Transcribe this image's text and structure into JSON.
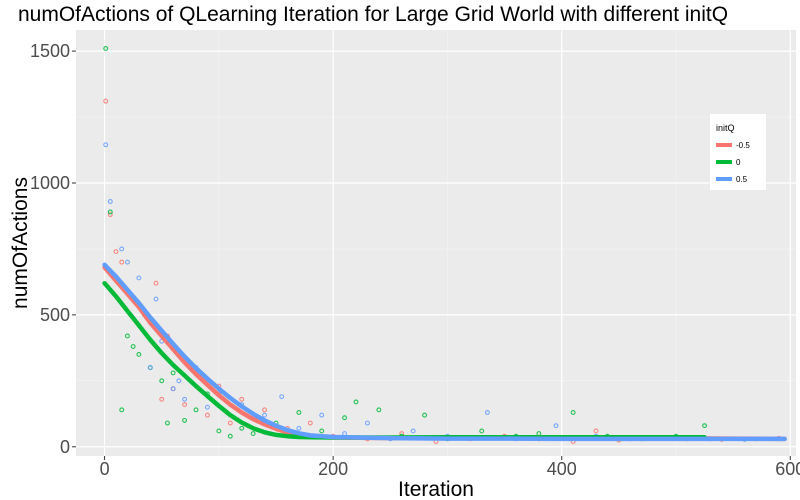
{
  "chart_data": {
    "type": "scatter",
    "title": "numOfActions of QLearning Iteration for Large Grid World with different initQ",
    "xlabel": "Iteration",
    "ylabel": "numOfActions",
    "xlim": [
      -25,
      605
    ],
    "ylim": [
      -35,
      1580
    ],
    "x_ticks": [
      0,
      200,
      400,
      600
    ],
    "y_ticks": [
      0,
      500,
      1000,
      1500
    ],
    "grid": true,
    "legend_title": "initQ",
    "legend_position": "right",
    "series": [
      {
        "name": "-0.5",
        "color": "#f8766d",
        "smooth": {
          "x": [
            0,
            10,
            20,
            30,
            40,
            50,
            60,
            70,
            80,
            90,
            100,
            110,
            120,
            130,
            140,
            150,
            160,
            170,
            180,
            200,
            250,
            300,
            350,
            400,
            450,
            500,
            550,
            595
          ],
          "y": [
            680,
            630,
            580,
            530,
            470,
            420,
            370,
            320,
            275,
            235,
            195,
            160,
            130,
            105,
            85,
            68,
            55,
            46,
            40,
            35,
            33,
            33,
            33,
            33,
            32,
            32,
            31,
            30
          ]
        },
        "scatter": {
          "x": [
            1,
            5,
            10,
            15,
            25,
            35,
            45,
            50,
            55,
            60,
            65,
            70,
            80,
            90,
            100,
            110,
            120,
            140,
            160,
            180,
            200,
            230,
            260,
            290,
            320,
            350,
            380,
            410,
            430,
            450,
            480,
            510,
            540,
            570,
            590
          ],
          "y": [
            1310,
            880,
            740,
            700,
            560,
            500,
            620,
            180,
            420,
            220,
            350,
            160,
            280,
            120,
            230,
            90,
            180,
            140,
            70,
            90,
            40,
            30,
            50,
            20,
            30,
            40,
            30,
            20,
            60,
            25,
            35,
            30,
            28,
            30,
            32
          ]
        }
      },
      {
        "name": "0",
        "color": "#00ba38",
        "smooth": {
          "x": [
            0,
            10,
            20,
            30,
            40,
            50,
            60,
            70,
            80,
            90,
            100,
            110,
            120,
            130,
            140,
            150,
            160,
            170,
            180,
            200,
            250,
            300,
            350,
            400,
            450,
            500,
            525
          ],
          "y": [
            620,
            570,
            515,
            460,
            405,
            355,
            310,
            270,
            230,
            192,
            155,
            120,
            92,
            70,
            55,
            45,
            40,
            37,
            36,
            35,
            35,
            36,
            36,
            36,
            36,
            36,
            36
          ]
        },
        "scatter": {
          "x": [
            1,
            5,
            15,
            20,
            25,
            30,
            40,
            50,
            55,
            60,
            70,
            80,
            90,
            100,
            110,
            120,
            130,
            150,
            170,
            190,
            210,
            220,
            240,
            260,
            280,
            300,
            330,
            360,
            380,
            410,
            440,
            470,
            500,
            525
          ],
          "y": [
            1510,
            890,
            140,
            420,
            380,
            350,
            300,
            250,
            90,
            280,
            100,
            140,
            200,
            60,
            40,
            70,
            50,
            90,
            130,
            60,
            110,
            170,
            140,
            40,
            120,
            30,
            60,
            40,
            50,
            130,
            40,
            30,
            40,
            80
          ]
        }
      },
      {
        "name": "0.5",
        "color": "#619cff",
        "smooth": {
          "x": [
            0,
            10,
            20,
            30,
            40,
            50,
            60,
            70,
            80,
            90,
            100,
            110,
            120,
            130,
            140,
            150,
            160,
            170,
            180,
            200,
            250,
            300,
            350,
            400,
            450,
            500,
            550,
            595
          ],
          "y": [
            690,
            645,
            595,
            545,
            490,
            440,
            390,
            342,
            298,
            258,
            220,
            185,
            153,
            125,
            100,
            80,
            63,
            51,
            43,
            37,
            33,
            31,
            31,
            30,
            30,
            30,
            30,
            30
          ]
        },
        "scatter": {
          "x": [
            1,
            5,
            15,
            20,
            30,
            40,
            45,
            50,
            60,
            65,
            70,
            80,
            90,
            100,
            120,
            140,
            155,
            170,
            190,
            210,
            230,
            250,
            270,
            300,
            335,
            360,
            395,
            430,
            460,
            500,
            530,
            560,
            590
          ],
          "y": [
            1145,
            930,
            750,
            700,
            640,
            300,
            560,
            400,
            220,
            250,
            180,
            300,
            150,
            200,
            160,
            120,
            190,
            70,
            120,
            50,
            90,
            30,
            60,
            40,
            130,
            30,
            80,
            40,
            30,
            35,
            30,
            28,
            30
          ]
        }
      }
    ]
  }
}
